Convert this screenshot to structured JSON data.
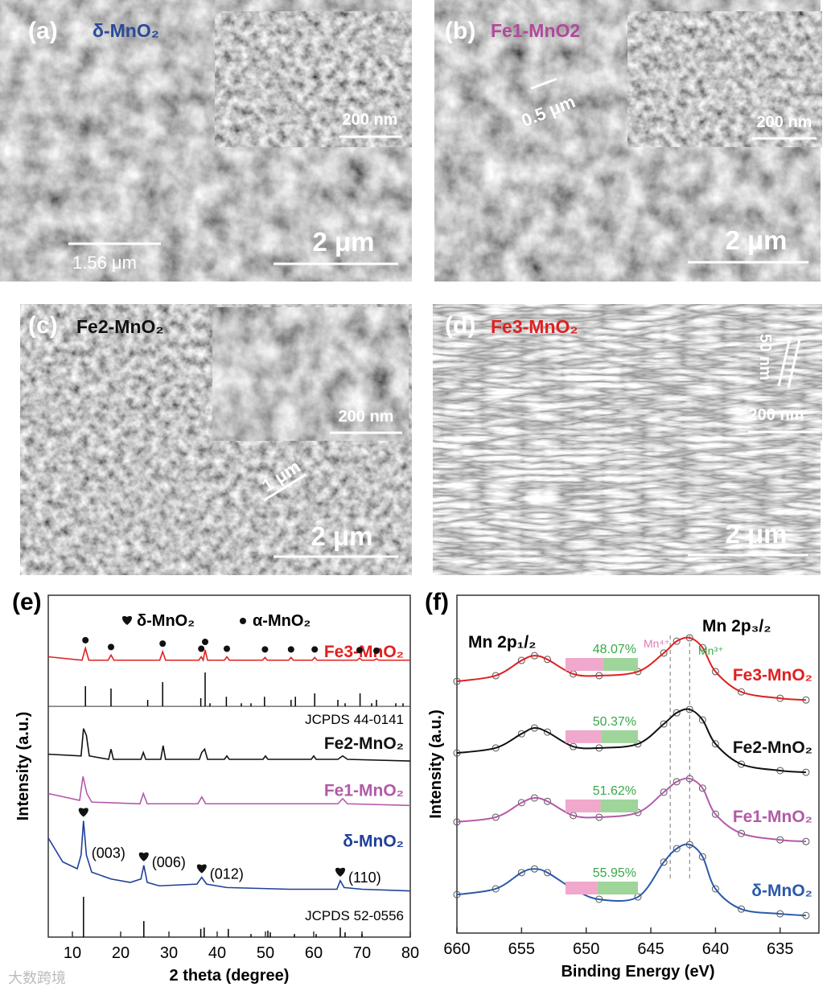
{
  "panels": [
    {
      "label": "(a)",
      "sample": "δ-MnO₂",
      "inset_scale": "200 nm",
      "scale": "2 μm",
      "measure": "1.56 μm"
    },
    {
      "label": "(b)",
      "sample": "Fe1-MnO2",
      "inset_scale": "200 nm",
      "scale": "2 μm",
      "measure": "0.5 μm"
    },
    {
      "label": "(c)",
      "sample": "Fe2-MnO₂",
      "inset_scale": "200 nm",
      "scale": "2 μm",
      "measure": "1 μm"
    },
    {
      "label": "(d)",
      "sample": "Fe3-MnO₂",
      "inset_scale": "200 nm",
      "scale": "2 μm",
      "measure": "50 nm"
    }
  ],
  "chart_data": [
    {
      "type": "line",
      "panel_label": "(e)",
      "xlabel": "2 theta (degree)",
      "ylabel": "Intensity (a.u.)",
      "xlim": [
        5,
        80
      ],
      "xticks": [
        10,
        20,
        30,
        40,
        50,
        60,
        70,
        80
      ],
      "ylim": [
        0,
        100
      ],
      "phases": [
        "δ-MnO₂",
        "α-MnO₂"
      ],
      "series": [
        {
          "name": "Fe3-MnO₂",
          "color": "#e02020",
          "x": [
            5,
            12.0,
            12.7,
            13.4,
            17.4,
            18.0,
            18.6,
            28.1,
            28.7,
            29.3,
            36.2,
            36.7,
            37.1,
            37.5,
            38.0,
            41.5,
            42.0,
            42.5,
            49.4,
            49.9,
            50.4,
            54.8,
            55.3,
            55.8,
            59.7,
            60.2,
            60.7,
            69.0,
            69.5,
            70.0,
            72.5,
            73.0,
            73.5,
            80
          ],
          "values": [
            82,
            81,
            84.5,
            81,
            81,
            82.5,
            81,
            81,
            83.5,
            81,
            81,
            82,
            81,
            84,
            81,
            81,
            82,
            81,
            81,
            81.8,
            81,
            81,
            81.8,
            81,
            81,
            81.8,
            81,
            81,
            81.6,
            81,
            81,
            81.4,
            81,
            81
          ]
        },
        {
          "name": "Fe2-MnO₂",
          "color": "#111111",
          "x": [
            5,
            11.8,
            12.3,
            12.9,
            13.5,
            17.5,
            18,
            18.5,
            24.2,
            24.7,
            25.2,
            28.3,
            28.8,
            29.3,
            36.3,
            36.8,
            37.4,
            38,
            41.5,
            42,
            42.5,
            49.5,
            50,
            50.5,
            59.5,
            60,
            60.5,
            65,
            66,
            67,
            80
          ],
          "values": [
            53.5,
            53,
            61,
            59,
            53,
            52,
            55,
            52,
            52,
            54,
            52,
            52,
            56,
            52,
            52,
            54,
            55,
            52,
            52,
            53,
            52,
            52,
            53,
            52,
            52,
            53,
            52,
            52,
            53,
            52,
            51.5
          ]
        },
        {
          "name": "Fe1-MnO₂",
          "color": "#b25aa8",
          "x": [
            5,
            11.5,
            12.2,
            13,
            14,
            24,
            24.7,
            25.5,
            36,
            36.8,
            37.6,
            65,
            66,
            67,
            80
          ],
          "values": [
            42,
            40,
            47,
            42,
            39.5,
            39,
            42,
            39,
            39,
            41,
            39,
            39,
            40.5,
            39,
            38.5
          ]
        },
        {
          "name": "δ-MnO₂",
          "color": "#1f3f99",
          "x": [
            5,
            8,
            11,
            11.8,
            12.3,
            12.9,
            14,
            18,
            22,
            24.2,
            24.8,
            25.5,
            28,
            35.8,
            36.8,
            37.8,
            42,
            55,
            64.8,
            65.5,
            66.3,
            70,
            80
          ],
          "values": [
            29,
            22,
            20,
            24,
            34,
            24,
            19,
            17,
            16,
            17,
            21,
            16,
            15,
            15.5,
            17.5,
            15.5,
            14.5,
            14,
            14,
            16.5,
            14.5,
            14,
            13.5
          ]
        }
      ],
      "alpha_peaks": [
        12.7,
        18.0,
        28.7,
        36.7,
        37.5,
        42.0,
        49.9,
        55.3,
        60.2,
        69.5,
        73.0
      ],
      "delta_peaks": [
        {
          "x": 12.3,
          "label": "(003)"
        },
        {
          "x": 24.8,
          "label": "(006)"
        },
        {
          "x": 36.8,
          "label": "(012)"
        },
        {
          "x": 65.5,
          "label": "(110)"
        }
      ],
      "references": [
        {
          "name": "JCPDS 44-0141",
          "baseline": 67.5,
          "x": [
            12.7,
            18.0,
            25.6,
            28.7,
            36.6,
            37.5,
            38.5,
            41.9,
            45,
            47,
            49.8,
            55.3,
            56.2,
            60.2,
            65,
            66.5,
            69.6,
            72,
            73,
            77,
            78.5
          ],
          "values": [
            5.9,
            5.2,
            1.9,
            7.1,
            2.4,
            9.9,
            0.9,
            2.8,
            0.9,
            0.9,
            2.8,
            1.9,
            2.8,
            3.8,
            1.9,
            0.9,
            3.8,
            0.9,
            1.9,
            0.9,
            0.9
          ]
        },
        {
          "name": "JCPDS 52-0556",
          "baseline": 0,
          "x": [
            12.3,
            24.8,
            36.6,
            37.3,
            42.3,
            47,
            50.5,
            51,
            56,
            60.5,
            65.5,
            66.5,
            70
          ],
          "values": [
            11.8,
            4.7,
            2.4,
            2.8,
            2.4,
            0.9,
            1.9,
            1.4,
            0.9,
            0.9,
            2.8,
            1.4,
            0.9
          ]
        }
      ]
    },
    {
      "type": "line",
      "panel_label": "(f)",
      "xlabel": "Binding Energy (eV)",
      "ylabel": "Intensity (a.u.)",
      "xlim": [
        660,
        632
      ],
      "xticks": [
        660,
        655,
        650,
        645,
        640,
        635
      ],
      "ylim": [
        0,
        100
      ],
      "peak_labels": [
        "Mn 2p₁/₂",
        "Mn 2p₃/₂"
      ],
      "components": [
        "Mn⁴⁺",
        "Mn³⁺"
      ],
      "component_colors": [
        "#e07ab8",
        "#3aa84a"
      ],
      "reference_lines": [
        643.5,
        642
      ],
      "series": [
        {
          "name": "Fe3-MnO₂",
          "color": "#e02020",
          "x": [
            660,
            657,
            655,
            654,
            653,
            651,
            649,
            646,
            644,
            643,
            642,
            641,
            640,
            638,
            635,
            633
          ],
          "values": [
            74.5,
            76.2,
            80.7,
            82.1,
            81.0,
            76.7,
            76.2,
            77.4,
            82.9,
            86.4,
            87.4,
            84.5,
            77.4,
            71.4,
            69.5,
            69.0
          ]
        },
        {
          "name": "Fe2-MnO₂",
          "color": "#111111",
          "x": [
            660,
            657,
            655,
            654,
            653,
            651,
            649,
            646,
            644,
            643,
            642,
            641,
            640,
            638,
            635,
            633
          ],
          "values": [
            53.3,
            54.8,
            59.0,
            60.7,
            59.5,
            55.2,
            54.8,
            56.0,
            61.9,
            65.2,
            66.2,
            63.1,
            56.0,
            50.0,
            48.1,
            47.6
          ]
        },
        {
          "name": "Fe1-MnO₂",
          "color": "#b25aa8",
          "x": [
            660,
            657,
            655,
            654,
            653,
            651,
            649,
            646,
            644,
            643,
            642,
            641,
            640,
            638,
            635,
            633
          ],
          "values": [
            32.9,
            34.3,
            38.6,
            40.0,
            39.0,
            34.8,
            34.3,
            35.7,
            41.7,
            44.8,
            45.7,
            42.9,
            35.2,
            29.5,
            27.6,
            27.1
          ]
        },
        {
          "name": "δ-MnO₂",
          "color": "#2a5aa8",
          "x": [
            660,
            657,
            655,
            654,
            653,
            651,
            649,
            646,
            644,
            643,
            642,
            641,
            640,
            638,
            635,
            633
          ],
          "values": [
            11.4,
            13.1,
            17.9,
            19.0,
            17.9,
            13.1,
            10.0,
            10.7,
            21.0,
            25.0,
            26.2,
            22.6,
            13.1,
            7.1,
            5.7,
            5.2
          ]
        }
      ],
      "mn3_percent": [
        48.07,
        50.37,
        51.62,
        55.95
      ],
      "mn3_percent_labels": [
        "48.07%",
        "50.37%",
        "51.62%",
        "55.95%"
      ]
    }
  ],
  "watermark": "大数跨境"
}
